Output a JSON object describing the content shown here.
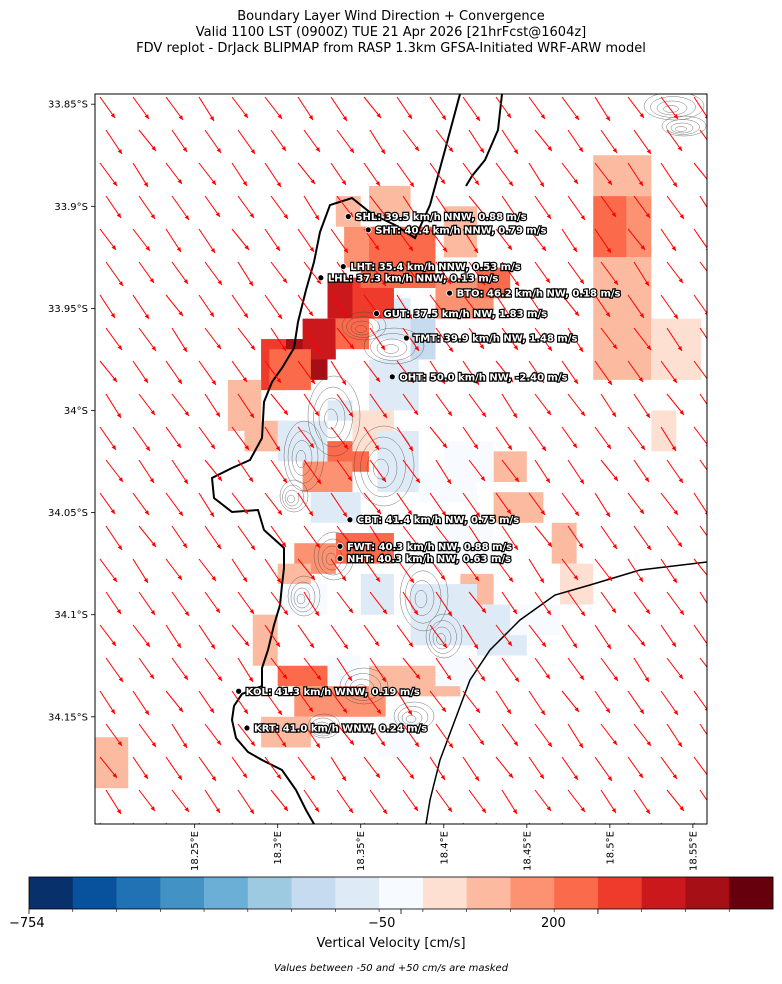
{
  "title": {
    "line1": "Boundary Layer Wind Direction + Convergence",
    "line2": "Valid 1100 LST (0900Z) TUE 21 Apr 2026 [21hrFcst@1604z]",
    "line3": "FDV replot - DrJack BLIPMAP from RASP 1.3km GFSA-Initiated WRF-ARW model"
  },
  "chart_data": {
    "type": "heatmap",
    "xlim": [
      18.19,
      18.5585
    ],
    "ylim": [
      -34.2025,
      -33.845
    ],
    "x_ticks": [
      18.25,
      18.3,
      18.35,
      18.4,
      18.45,
      18.5,
      18.55
    ],
    "x_tick_labels": [
      "18.25°E",
      "18.3°E",
      "18.35°E",
      "18.4°E",
      "18.45°E",
      "18.5°E",
      "18.55°E"
    ],
    "y_ticks": [
      -33.85,
      -33.9,
      -33.95,
      -34.0,
      -34.05,
      -34.1,
      -34.15
    ],
    "y_tick_labels": [
      "33.85°S",
      "33.9°S",
      "33.95°S",
      "34°S",
      "34.05°S",
      "34.1°S",
      "34.15°S"
    ],
    "wind_arrows": {
      "color": "#ff0000",
      "direction": "NW",
      "note": "boundary layer wind vectors"
    },
    "stations": [
      {
        "code": "SHL",
        "lon": 18.3425,
        "lat": -33.905,
        "label": "SHL: 39.5 km/h NNW, 0.88 m/s"
      },
      {
        "code": "SHT",
        "lon": 18.3545,
        "lat": -33.9115,
        "label": "SHT: 40.4 km/h NNW, 0.79 m/s"
      },
      {
        "code": "LHT",
        "lon": 18.3395,
        "lat": -33.9295,
        "label": "LHT: 35.4 km/h NNW, 0.53 m/s"
      },
      {
        "code": "LHL",
        "lon": 18.326,
        "lat": -33.935,
        "label": "LHL: 37.3 km/h NNW, 0.13 m/s"
      },
      {
        "code": "BTO",
        "lon": 18.4035,
        "lat": -33.9425,
        "label": "BTO: 46.2 km/h NW, 0.18 m/s"
      },
      {
        "code": "GUT",
        "lon": 18.3595,
        "lat": -33.9525,
        "label": "GUT: 37.5 km/h NW, 1.83 m/s"
      },
      {
        "code": "TMT",
        "lon": 18.3775,
        "lat": -33.9645,
        "label": "TMT: 39.9 km/h NW, 1.48 m/s"
      },
      {
        "code": "OHT",
        "lon": 18.369,
        "lat": -33.9835,
        "label": "OHT: 50.0 km/h NW, -2.40 m/s"
      },
      {
        "code": "CBT",
        "lon": 18.3435,
        "lat": -34.0535,
        "label": "CBT: 41.4 km/h NW, 0.75 m/s"
      },
      {
        "code": "FWT",
        "lon": 18.3375,
        "lat": -34.0665,
        "label": "FWT: 40.3 km/h NW, 0.88 m/s"
      },
      {
        "code": "NHT",
        "lon": 18.3375,
        "lat": -34.0725,
        "label": "NHT: 40.3 km/h NW, 0.63 m/s"
      },
      {
        "code": "KOL",
        "lon": 18.2765,
        "lat": -34.1375,
        "label": "KOL: 41.3 km/h WNW, 0.19 m/s"
      },
      {
        "code": "KRT",
        "lon": 18.2815,
        "lat": -34.1555,
        "label": "KRT: 41.0 km/h WNW, 0.24 m/s"
      }
    ],
    "velocity_cells": [
      {
        "lon": [
          18.36,
          18.38
        ],
        "lat": [
          -33.945,
          -33.965
        ],
        "level": 7
      },
      {
        "lon": [
          18.38,
          18.395
        ],
        "lat": [
          -33.955,
          -33.975
        ],
        "level": 6
      },
      {
        "lon": [
          18.33,
          18.35
        ],
        "lat": [
          -33.935,
          -33.955
        ],
        "level": 14
      },
      {
        "lon": [
          18.345,
          18.37
        ],
        "lat": [
          -33.935,
          -33.955
        ],
        "level": 13
      },
      {
        "lon": [
          18.305,
          18.33
        ],
        "lat": [
          -33.965,
          -33.985
        ],
        "level": 15
      },
      {
        "lon": [
          18.315,
          18.335
        ],
        "lat": [
          -33.955,
          -33.975
        ],
        "level": 14
      },
      {
        "lon": [
          18.335,
          18.355
        ],
        "lat": [
          -33.955,
          -33.97
        ],
        "level": 12
      },
      {
        "lon": [
          18.29,
          18.305
        ],
        "lat": [
          -33.965,
          -33.99
        ],
        "level": 13
      },
      {
        "lon": [
          18.35,
          18.395
        ],
        "lat": [
          -33.91,
          -33.94
        ],
        "level": 12
      },
      {
        "lon": [
          18.34,
          18.355
        ],
        "lat": [
          -33.91,
          -33.93
        ],
        "level": 11
      },
      {
        "lon": [
          18.335,
          18.35
        ],
        "lat": [
          -33.895,
          -33.91
        ],
        "level": 10
      },
      {
        "lon": [
          18.395,
          18.43
        ],
        "lat": [
          -33.935,
          -33.955
        ],
        "level": 11
      },
      {
        "lon": [
          18.42,
          18.44
        ],
        "lat": [
          -33.93,
          -33.945
        ],
        "level": 12
      },
      {
        "lon": [
          18.355,
          18.38
        ],
        "lat": [
          -33.89,
          -33.905
        ],
        "level": 10
      },
      {
        "lon": [
          18.4,
          18.42
        ],
        "lat": [
          -33.9,
          -33.925
        ],
        "level": 10
      },
      {
        "lon": [
          18.295,
          18.32
        ],
        "lat": [
          -33.97,
          -33.99
        ],
        "level": 12
      },
      {
        "lon": [
          18.27,
          18.29
        ],
        "lat": [
          -33.985,
          -34.01
        ],
        "level": 10
      },
      {
        "lon": [
          18.28,
          18.305
        ],
        "lat": [
          -34.005,
          -34.02
        ],
        "level": 10
      },
      {
        "lon": [
          18.32,
          18.355
        ],
        "lat": [
          -34.015,
          -34.03
        ],
        "level": 12
      },
      {
        "lon": [
          18.315,
          18.345
        ],
        "lat": [
          -34.025,
          -34.04
        ],
        "level": 11
      },
      {
        "lon": [
          18.345,
          18.37
        ],
        "lat": [
          -34.0,
          -34.02
        ],
        "level": 9
      },
      {
        "lon": [
          18.43,
          18.45
        ],
        "lat": [
          -34.02,
          -34.035
        ],
        "level": 10
      },
      {
        "lon": [
          18.43,
          18.46
        ],
        "lat": [
          -34.04,
          -34.055
        ],
        "level": 10
      },
      {
        "lon": [
          18.465,
          18.48
        ],
        "lat": [
          -34.055,
          -34.075
        ],
        "level": 10
      },
      {
        "lon": [
          18.335,
          18.37
        ],
        "lat": [
          -34.06,
          -34.075
        ],
        "level": 12
      },
      {
        "lon": [
          18.31,
          18.335
        ],
        "lat": [
          -34.065,
          -34.08
        ],
        "level": 11
      },
      {
        "lon": [
          18.3,
          18.32
        ],
        "lat": [
          -34.075,
          -34.085
        ],
        "level": 10
      },
      {
        "lon": [
          18.41,
          18.43
        ],
        "lat": [
          -34.08,
          -34.095
        ],
        "level": 10
      },
      {
        "lon": [
          18.285,
          18.3
        ],
        "lat": [
          -34.1,
          -34.125
        ],
        "level": 10
      },
      {
        "lon": [
          18.3,
          18.345
        ],
        "lat": [
          -34.125,
          -34.135
        ],
        "level": 12
      },
      {
        "lon": [
          18.31,
          18.365
        ],
        "lat": [
          -34.135,
          -34.15
        ],
        "level": 11
      },
      {
        "lon": [
          18.355,
          18.41
        ],
        "lat": [
          -34.125,
          -34.14
        ],
        "level": 10
      },
      {
        "lon": [
          18.29,
          18.32
        ],
        "lat": [
          -34.15,
          -34.165
        ],
        "level": 10
      },
      {
        "lon": [
          18.19,
          18.21
        ],
        "lat": [
          -34.16,
          -34.185
        ],
        "level": 10
      },
      {
        "lon": [
          18.49,
          18.525
        ],
        "lat": [
          -33.875,
          -33.895
        ],
        "level": 10
      },
      {
        "lon": [
          18.49,
          18.51
        ],
        "lat": [
          -33.895,
          -33.925
        ],
        "level": 12
      },
      {
        "lon": [
          18.51,
          18.525
        ],
        "lat": [
          -33.895,
          -33.925
        ],
        "level": 11
      },
      {
        "lon": [
          18.49,
          18.525
        ],
        "lat": [
          -33.925,
          -33.985
        ],
        "level": 10
      },
      {
        "lon": [
          18.525,
          18.555
        ],
        "lat": [
          -33.955,
          -33.985
        ],
        "level": 9
      },
      {
        "lon": [
          18.525,
          18.54
        ],
        "lat": [
          -34.0,
          -34.02
        ],
        "level": 9
      },
      {
        "lon": [
          18.47,
          18.49
        ],
        "lat": [
          -34.075,
          -34.095
        ],
        "level": 9
      },
      {
        "lon": [
          18.33,
          18.345
        ],
        "lat": [
          -33.995,
          -34.005
        ],
        "level": 7
      },
      {
        "lon": [
          18.355,
          18.385
        ],
        "lat": [
          -33.975,
          -34.0
        ],
        "level": 7
      },
      {
        "lon": [
          18.3,
          18.33
        ],
        "lat": [
          -34.005,
          -34.025
        ],
        "level": 7
      },
      {
        "lon": [
          18.36,
          18.385
        ],
        "lat": [
          -34.01,
          -34.04
        ],
        "level": 7
      },
      {
        "lon": [
          18.385,
          18.42
        ],
        "lat": [
          -34.03,
          -34.045
        ],
        "level": 8
      },
      {
        "lon": [
          18.32,
          18.35
        ],
        "lat": [
          -34.04,
          -34.055
        ],
        "level": 7
      },
      {
        "lon": [
          18.35,
          18.37
        ],
        "lat": [
          -34.08,
          -34.1
        ],
        "level": 7
      },
      {
        "lon": [
          18.38,
          18.42
        ],
        "lat": [
          -34.085,
          -34.115
        ],
        "level": 7
      },
      {
        "lon": [
          18.42,
          18.45
        ],
        "lat": [
          -34.095,
          -34.12
        ],
        "level": 7
      },
      {
        "lon": [
          18.3,
          18.33
        ],
        "lat": [
          -34.085,
          -34.1
        ],
        "level": 8
      },
      {
        "lon": [
          18.395,
          18.42
        ],
        "lat": [
          -34.12,
          -34.135
        ],
        "level": 8
      },
      {
        "lon": [
          18.36,
          18.385
        ],
        "lat": [
          -34.15,
          -34.17
        ],
        "level": 8
      },
      {
        "lon": [
          18.4,
          18.43
        ],
        "lat": [
          -34.015,
          -34.035
        ],
        "level": 8
      },
      {
        "lon": [
          18.44,
          18.47
        ],
        "lat": [
          -34.095,
          -34.11
        ],
        "level": 8
      },
      {
        "lon": [
          18.395,
          18.43
        ],
        "lat": [
          -34.055,
          -34.075
        ],
        "level": 8
      },
      {
        "lon": [
          18.33,
          18.35
        ],
        "lat": [
          -34.12,
          -34.135
        ],
        "level": 8
      }
    ],
    "colorbar": {
      "label": "Vertical Velocity [cm/s]",
      "tick_labels": [
        "−754",
        "−50",
        "200"
      ],
      "colors": [
        "#08306b",
        "#08519c",
        "#2171b5",
        "#4292c6",
        "#6baed6",
        "#9ecae1",
        "#c6dbef",
        "#deebf7",
        "#f7fbff",
        "#fee0d2",
        "#fcbba1",
        "#fc9272",
        "#fb6a4a",
        "#ef3b2c",
        "#cb181d",
        "#a50f15",
        "#67000d"
      ]
    },
    "masked_note": "Values between -50 and +50 cm/s are masked"
  }
}
